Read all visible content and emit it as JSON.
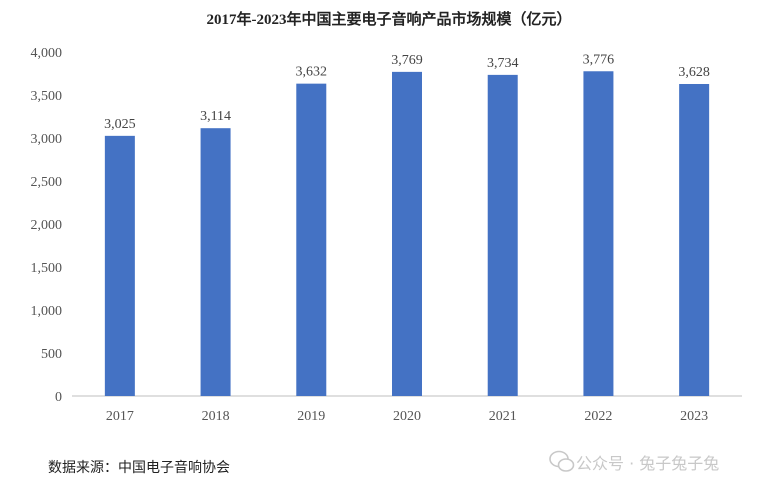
{
  "title": "2017年-2023年中国主要电子音响产品市场规模（亿元）",
  "source": "数据来源：中国电子音响协会",
  "watermark": "公众号 · 兔子兔子兔",
  "colors": {
    "bar": "#4472C4",
    "axis": "#bfbfbf"
  },
  "chart_data": {
    "type": "bar",
    "title": "2017年-2023年中国主要电子音响产品市场规模（亿元）",
    "xlabel": "",
    "ylabel": "",
    "categories": [
      "2017",
      "2018",
      "2019",
      "2020",
      "2021",
      "2022",
      "2023"
    ],
    "values": [
      3025,
      3114,
      3632,
      3769,
      3734,
      3776,
      3628
    ],
    "data_labels": [
      "3,025",
      "3,114",
      "3,632",
      "3,769",
      "3,734",
      "3,776",
      "3,628"
    ],
    "ylim": [
      0,
      4000
    ],
    "yticks": [
      0,
      500,
      1000,
      1500,
      2000,
      2500,
      3000,
      3500,
      4000
    ],
    "ytick_labels": [
      "0",
      "500",
      "1,000",
      "1,500",
      "2,000",
      "2,500",
      "3,000",
      "3,500",
      "4,000"
    ],
    "grid": false,
    "legend": "none"
  }
}
